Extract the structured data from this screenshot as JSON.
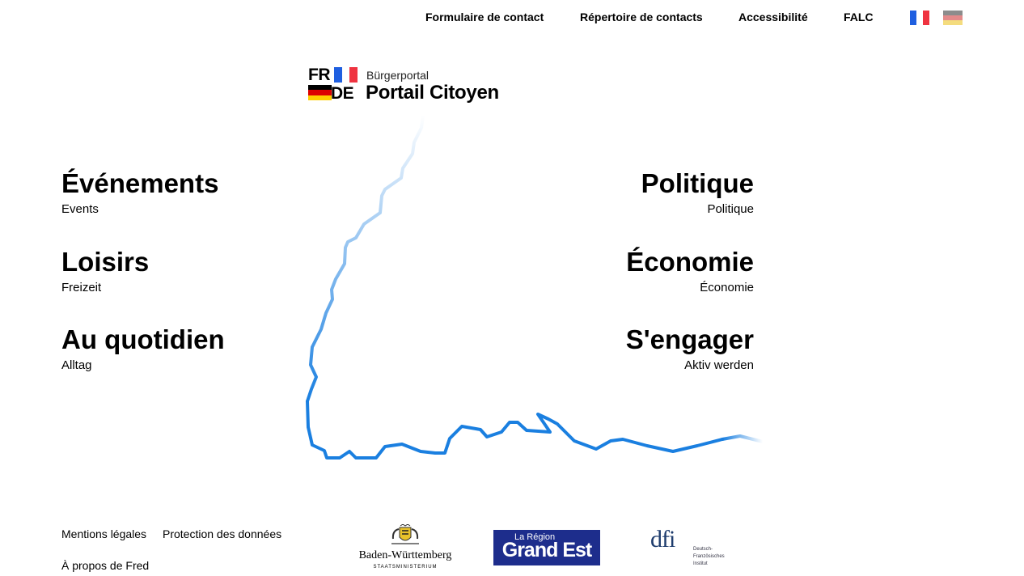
{
  "nav": {
    "contact_form": "Formulaire de contact",
    "contact_directory": "Répertoire de contacts",
    "accessibility": "Accessibilité",
    "falc": "FALC",
    "lang_fr": "Français",
    "lang_de": "Deutsch"
  },
  "logo": {
    "code_fr": "FR",
    "code_de": "DE",
    "subtitle": "Bürgerportal",
    "title": "Portail Citoyen"
  },
  "categories": {
    "left": [
      {
        "title": "Événements",
        "subtitle": "Events"
      },
      {
        "title": "Loisirs",
        "subtitle": "Freizeit"
      },
      {
        "title": "Au quotidien",
        "subtitle": "Alltag"
      }
    ],
    "right": [
      {
        "title": "Politique",
        "subtitle": "Politique"
      },
      {
        "title": "Économie",
        "subtitle": "Économie"
      },
      {
        "title": "S'engager",
        "subtitle": "Aktiv werden"
      }
    ]
  },
  "footer": {
    "legal": "Mentions légales",
    "privacy": "Protection des données",
    "about": "À propos de Fred",
    "partners": {
      "bw_name": "Baden-Württemberg",
      "bw_ministry": "STAATSMINISTERIUM",
      "ge_small": "La Région",
      "ge_big": "Grand Est",
      "dfi_mark": "dfi",
      "dfi_line1": "Deutsch-",
      "dfi_line2": "Französisches",
      "dfi_line3": "Institut"
    }
  },
  "colors": {
    "river": "#1a7fe0",
    "fr_blue": "#1f5fe0",
    "fr_red": "#ef3340",
    "de_black": "#000000",
    "de_red": "#dd0000",
    "de_gold": "#ffce00",
    "grand_est_bg": "#1d2d8c"
  }
}
